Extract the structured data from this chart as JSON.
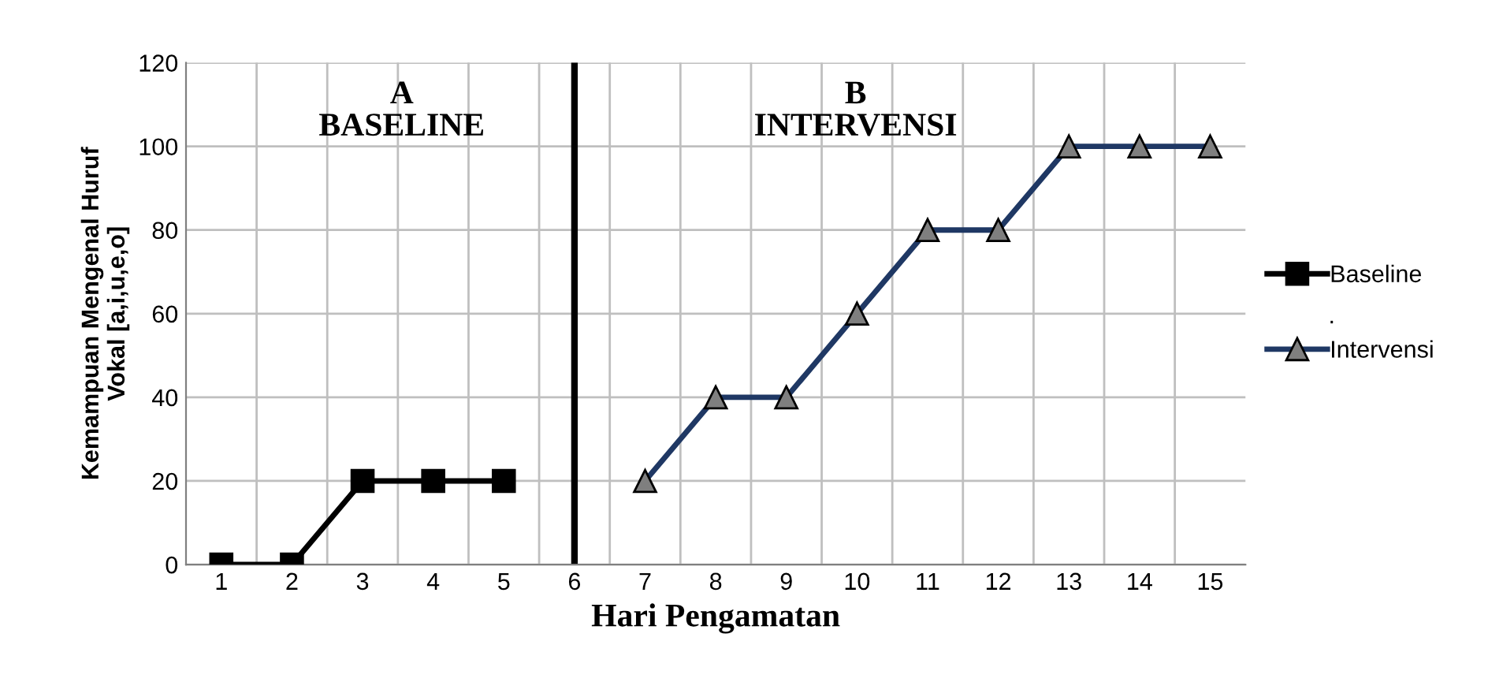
{
  "chart_data": {
    "type": "line",
    "xlabel": "Hari Pengamatan",
    "ylabel": "Kemampuan Mengenal Huruf\nVokal [a,i,u,e,o]",
    "categories": [
      "1",
      "2",
      "3",
      "4",
      "5",
      "6",
      "7",
      "8",
      "9",
      "10",
      "11",
      "12",
      "13",
      "14",
      "15"
    ],
    "series": [
      {
        "name": "Baseline",
        "color": "#000000",
        "marker": "square",
        "values": [
          0,
          0,
          20,
          20,
          20,
          null,
          null,
          null,
          null,
          null,
          null,
          null,
          null,
          null,
          null
        ]
      },
      {
        "name": "Intervensi",
        "color": "#1f3864",
        "marker": "triangle",
        "values": [
          null,
          null,
          null,
          null,
          null,
          null,
          20,
          40,
          40,
          60,
          80,
          80,
          100,
          100,
          100
        ]
      }
    ],
    "ylim": [
      0,
      120
    ],
    "yticks": [
      0,
      20,
      40,
      60,
      80,
      100,
      120
    ],
    "grid": true,
    "legend": "right",
    "line_style": "solid",
    "ref_lines": [
      {
        "axis": "x",
        "value": "6",
        "label": null,
        "color": "#000000"
      }
    ],
    "annotations": [
      "A\nBASELINE",
      "B\nINTERVENSI",
      "."
    ]
  }
}
